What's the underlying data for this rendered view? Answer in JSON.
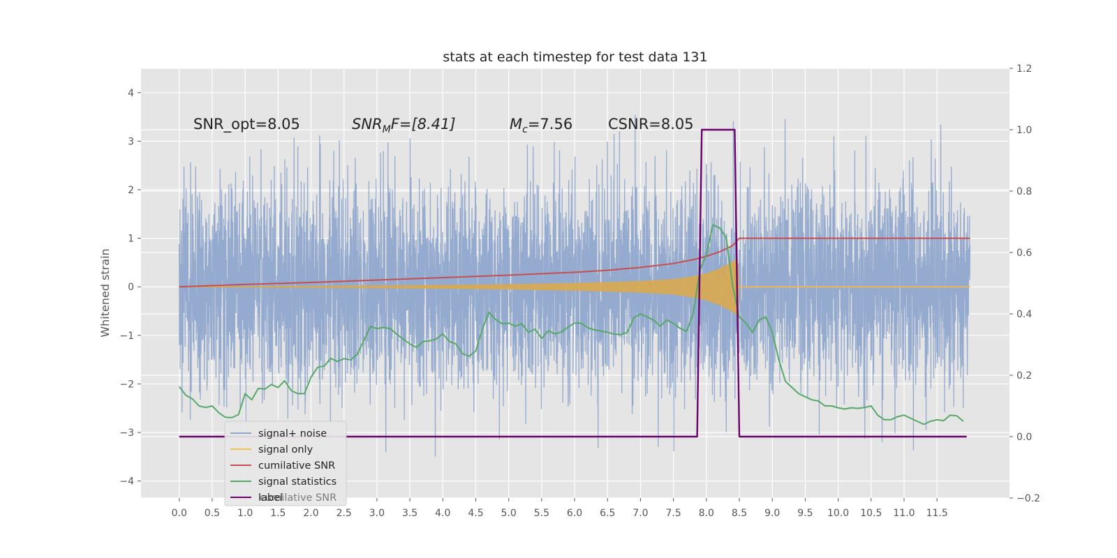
{
  "chart_data": {
    "type": "line",
    "title": "stats at each timestep for test data 131",
    "ylabel_left": "Whitened strain",
    "xlabel": "",
    "xlim": [
      -0.58,
      12.6
    ],
    "ylim_left": [
      -4.35,
      4.5
    ],
    "ylim_right": [
      -0.2,
      1.2
    ],
    "x_ticks": [
      "0.0",
      "0.5",
      "1.0",
      "1.5",
      "2.0",
      "2.5",
      "3.0",
      "3.5",
      "4.0",
      "4.5",
      "5.0",
      "5.5",
      "6.0",
      "6.5",
      "7.0",
      "7.5",
      "8.0",
      "8.5",
      "9.0",
      "9.5",
      "10.0",
      "10.5",
      "11.0",
      "11.5"
    ],
    "y_ticks_left": [
      "4",
      "3",
      "2",
      "1",
      "0",
      "−1",
      "−2",
      "−3",
      "−4"
    ],
    "y_ticks_right": [
      "1.2",
      "1.0",
      "0.8",
      "0.6",
      "0.4",
      "0.2",
      "0.0",
      "−0.2"
    ],
    "grid": true,
    "legend_position": "lower-left",
    "annotations": {
      "snr_opt": "SNR_opt=8.05",
      "snr_mf_sym": "SNR",
      "snr_mf_sub": "M",
      "snr_mf_rest": "F=[8.41]",
      "mc_sym": "M",
      "mc_sub": "c",
      "mc_rest": "=7.56",
      "csnr": "CSNR=8.05"
    },
    "legend": [
      {
        "label": "signal+ noise",
        "color": "#8fa6cc"
      },
      {
        "label": "signal only",
        "color": "#f2c14e"
      },
      {
        "label": "cumilative SNR",
        "color": "#c44e52"
      },
      {
        "label": "signal statistics",
        "color": "#55a868"
      },
      {
        "label": "label",
        "color": "#6a006a"
      }
    ],
    "legend_hidden_text": "cumilative SNR",
    "series": [
      {
        "name": "signal+ noise",
        "axis": "left",
        "kind": "noise-band",
        "color": "#8fa6cc",
        "x_range": [
          0.0,
          12.0
        ],
        "approx_envelope": [
          -3.5,
          3.6
        ]
      },
      {
        "name": "signal only",
        "axis": "left",
        "kind": "chirp-band",
        "color": "#d9a84f",
        "envelope": {
          "x": [
            0.0,
            1.0,
            2.0,
            3.0,
            4.0,
            5.0,
            6.0,
            7.0,
            7.5,
            7.8,
            8.0,
            8.2,
            8.4,
            8.48,
            8.5,
            12.0
          ],
          "amp": [
            0.01,
            0.015,
            0.02,
            0.03,
            0.04,
            0.055,
            0.08,
            0.12,
            0.16,
            0.22,
            0.28,
            0.38,
            0.52,
            0.6,
            0.02,
            0.01
          ]
        }
      },
      {
        "name": "cumilative SNR",
        "axis": "left",
        "color": "#c44e52",
        "x": [
          0.0,
          1.0,
          2.0,
          3.0,
          4.0,
          5.0,
          6.0,
          6.5,
          7.0,
          7.5,
          7.8,
          8.0,
          8.2,
          8.4,
          8.5,
          12.0
        ],
        "y": [
          0.0,
          0.05,
          0.09,
          0.14,
          0.19,
          0.24,
          0.3,
          0.34,
          0.4,
          0.48,
          0.56,
          0.63,
          0.72,
          0.85,
          1.0,
          1.0
        ]
      },
      {
        "name": "signal statistics",
        "axis": "right",
        "color": "#55a868",
        "x": [
          0.0,
          0.1,
          0.2,
          0.3,
          0.4,
          0.5,
          0.6,
          0.7,
          0.8,
          0.9,
          1.0,
          1.1,
          1.2,
          1.3,
          1.4,
          1.5,
          1.6,
          1.7,
          1.8,
          1.9,
          2.0,
          2.1,
          2.2,
          2.3,
          2.4,
          2.5,
          2.6,
          2.7,
          2.8,
          2.9,
          3.0,
          3.1,
          3.2,
          3.3,
          3.4,
          3.5,
          3.6,
          3.7,
          3.8,
          3.9,
          4.0,
          4.1,
          4.2,
          4.3,
          4.4,
          4.5,
          4.6,
          4.7,
          4.8,
          4.9,
          5.0,
          5.1,
          5.2,
          5.3,
          5.4,
          5.5,
          5.6,
          5.7,
          5.8,
          5.9,
          6.0,
          6.1,
          6.2,
          6.3,
          6.4,
          6.5,
          6.6,
          6.7,
          6.8,
          6.9,
          7.0,
          7.1,
          7.2,
          7.3,
          7.4,
          7.5,
          7.6,
          7.7,
          7.8,
          7.9,
          8.0,
          8.1,
          8.2,
          8.3,
          8.4,
          8.5,
          8.6,
          8.7,
          8.8,
          8.9,
          9.0,
          9.1,
          9.2,
          9.3,
          9.4,
          9.5,
          9.6,
          9.7,
          9.8,
          9.9,
          10.0,
          10.1,
          10.2,
          10.3,
          10.4,
          10.5,
          10.6,
          10.7,
          10.8,
          10.9,
          11.0,
          11.1,
          11.2,
          11.3,
          11.4,
          11.5,
          11.6,
          11.7,
          11.8,
          11.9
        ],
        "y": [
          0.163,
          0.135,
          0.123,
          0.1,
          0.095,
          0.1,
          0.078,
          0.063,
          0.062,
          0.072,
          0.14,
          0.12,
          0.157,
          0.155,
          0.17,
          0.16,
          0.182,
          0.15,
          0.14,
          0.14,
          0.194,
          0.226,
          0.23,
          0.255,
          0.245,
          0.254,
          0.25,
          0.268,
          0.312,
          0.359,
          0.352,
          0.356,
          0.352,
          0.334,
          0.318,
          0.302,
          0.291,
          0.31,
          0.312,
          0.318,
          0.335,
          0.31,
          0.302,
          0.27,
          0.262,
          0.279,
          0.35,
          0.405,
          0.382,
          0.368,
          0.37,
          0.36,
          0.368,
          0.34,
          0.35,
          0.32,
          0.345,
          0.335,
          0.341,
          0.357,
          0.37,
          0.37,
          0.355,
          0.348,
          0.344,
          0.34,
          0.334,
          0.332,
          0.34,
          0.388,
          0.4,
          0.39,
          0.38,
          0.36,
          0.38,
          0.369,
          0.353,
          0.343,
          0.4,
          0.54,
          0.594,
          0.69,
          0.68,
          0.65,
          0.49,
          0.39,
          0.37,
          0.34,
          0.38,
          0.39,
          0.34,
          0.25,
          0.18,
          0.16,
          0.14,
          0.13,
          0.12,
          0.116,
          0.1,
          0.1,
          0.094,
          0.09,
          0.094,
          0.092,
          0.095,
          0.1,
          0.07,
          0.055,
          0.055,
          0.065,
          0.07,
          0.06,
          0.05,
          0.04,
          0.05,
          0.055,
          0.052,
          0.07,
          0.068,
          0.05
        ]
      },
      {
        "name": "label",
        "axis": "right",
        "color": "#6a006a",
        "x": [
          0.0,
          7.86,
          7.93,
          8.43,
          8.5,
          11.95
        ],
        "y": [
          0.0,
          0.0,
          1.0,
          1.0,
          0.0,
          0.0
        ]
      }
    ]
  }
}
